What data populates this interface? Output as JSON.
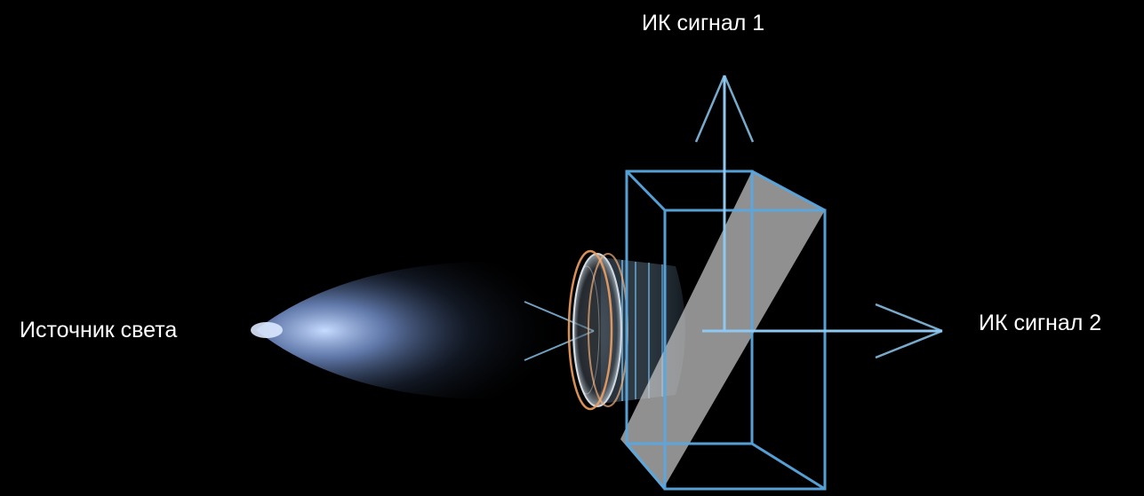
{
  "labels": {
    "light_source": "Источник света",
    "ir_signal_1": "ИК сигнал 1",
    "ir_signal_2": "ИК сигнал 2"
  },
  "colors": {
    "background": "#000000",
    "beam": "#7fb8e6",
    "prism_edge": "#5aa8e0",
    "prism_plane": "#c8c8c8",
    "lens_ring": "#f0a060",
    "text": "#ffffff"
  },
  "icons": {
    "source": "light-glow-icon",
    "lens": "lens-icon",
    "splitter": "beam-splitter-prism-icon"
  }
}
